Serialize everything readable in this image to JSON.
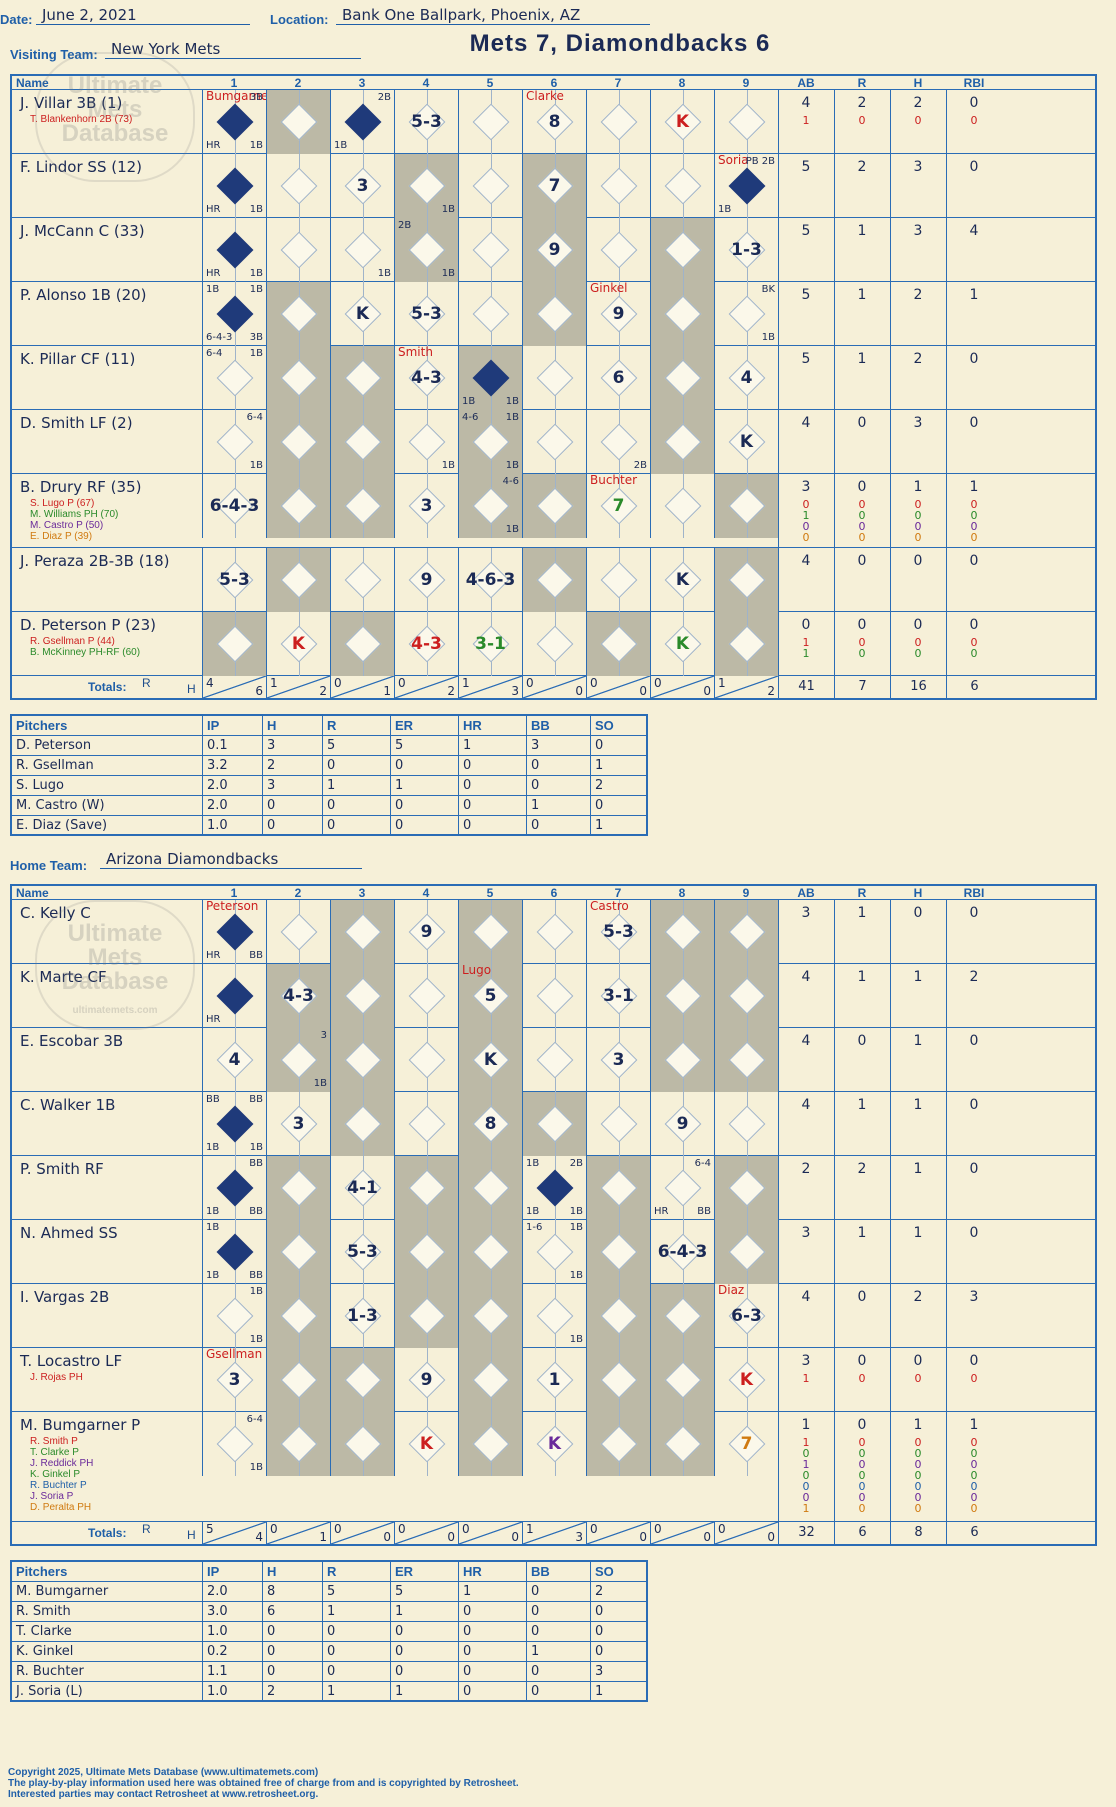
{
  "header": {
    "date_label": "Date:",
    "date": "June 2, 2021",
    "location_label": "Location:",
    "location": "Bank One Ballpark, Phoenix, AZ",
    "visiting_label": "Visiting Team:",
    "visiting": "New York Mets",
    "home_label": "Home Team:",
    "home": "Arizona Diamondbacks",
    "title": "Mets 7, Diamondbacks 6"
  },
  "columns": {
    "name": "Name",
    "innings": [
      "1",
      "2",
      "3",
      "4",
      "5",
      "6",
      "7",
      "8",
      "9"
    ],
    "ab": "AB",
    "r": "R",
    "h": "H",
    "rbi": "RBI"
  },
  "visitors": [
    {
      "name": "J. Villar 3B (1)",
      "subs": [
        {
          "t": "T. Blankenhorn 2B (73)",
          "c": "#cc1f1f"
        }
      ],
      "ab": [
        "4",
        "1"
      ],
      "r": [
        "2",
        "0"
      ],
      "h": [
        "2",
        "0"
      ],
      "rbi": [
        "0",
        "0"
      ],
      "cells": {
        "0": {
          "d": 1,
          "tl": "Bumgarner",
          "tr": "3B",
          "bl": "HR",
          "br": "1B"
        },
        "2": {
          "d": 1,
          "tr": "2B",
          "bl": "1B"
        },
        "3": {
          "p": "5-3"
        },
        "5": {
          "p": "8",
          "tl": "Clarke"
        },
        "7": {
          "p": "K",
          "red": 1
        }
      }
    },
    {
      "name": "F. Lindor SS (12)",
      "subs": [],
      "ab": [
        "5"
      ],
      "r": [
        "2"
      ],
      "h": [
        "3"
      ],
      "rbi": [
        "0"
      ],
      "cells": {
        "0": {
          "d": 1,
          "bl": "HR",
          "br": "1B"
        },
        "2": {
          "p": "3"
        },
        "3": {
          "br": "1B"
        },
        "5": {
          "p": "7"
        },
        "8": {
          "d": 1,
          "tl": "Soria",
          "tr": "PB 2B",
          "bl": "1B"
        }
      }
    },
    {
      "name": "J. McCann C (33)",
      "subs": [],
      "ab": [
        "5"
      ],
      "r": [
        "1"
      ],
      "h": [
        "3"
      ],
      "rbi": [
        "4"
      ],
      "cells": {
        "0": {
          "d": 1,
          "bl": "HR",
          "br": "1B"
        },
        "2": {
          "br": "1B"
        },
        "3": {
          "tl": "2B",
          "br": "1B"
        },
        "5": {
          "p": "9"
        },
        "8": {
          "p": "1-3"
        }
      }
    },
    {
      "name": "P. Alonso 1B (20)",
      "subs": [],
      "ab": [
        "5"
      ],
      "r": [
        "1"
      ],
      "h": [
        "2"
      ],
      "rbi": [
        "1"
      ],
      "cells": {
        "0": {
          "d": 1,
          "tl": "1B",
          "tr": "1B",
          "bl": "6-4-3",
          "br": "3B"
        },
        "2": {
          "p": "K"
        },
        "3": {
          "p": "5-3"
        },
        "6": {
          "p": "9",
          "tl": "Ginkel"
        },
        "8": {
          "tr": "BK",
          "br": "1B"
        }
      }
    },
    {
      "name": "K. Pillar CF (11)",
      "subs": [],
      "ab": [
        "5"
      ],
      "r": [
        "1"
      ],
      "h": [
        "2"
      ],
      "rbi": [
        "0"
      ],
      "cells": {
        "0": {
          "tl": "6-4",
          "tr": "1B"
        },
        "3": {
          "p": "4-3",
          "tl": "Smith"
        },
        "4": {
          "d": 1,
          "bl": "1B",
          "br": "1B"
        },
        "6": {
          "p": "6"
        },
        "8": {
          "p": "4"
        }
      }
    },
    {
      "name": "D. Smith LF (2)",
      "subs": [],
      "ab": [
        "4"
      ],
      "r": [
        "0"
      ],
      "h": [
        "3"
      ],
      "rbi": [
        "0"
      ],
      "cells": {
        "0": {
          "tr": "6-4",
          "br": "1B"
        },
        "3": {
          "br": "1B"
        },
        "4": {
          "tl": "4-6",
          "tr": "1B",
          "br": "1B"
        },
        "6": {
          "br": "2B"
        },
        "8": {
          "p": "K"
        }
      }
    },
    {
      "name": "B. Drury RF (35)",
      "subs": [
        {
          "t": "S. Lugo P (67)",
          "c": "#cc1f1f"
        },
        {
          "t": "M. Williams PH (70)",
          "c": "#2a8a2a"
        },
        {
          "t": "M. Castro P (50)",
          "c": "#6a2a9a"
        },
        {
          "t": "E. Diaz P (39)",
          "c": "#d07a10"
        }
      ],
      "ab": [
        "3",
        "0",
        "1",
        "0",
        "0"
      ],
      "r": [
        "0",
        "0",
        "0",
        "0",
        "0"
      ],
      "h": [
        "1",
        "0",
        "0",
        "0",
        "0"
      ],
      "rbi": [
        "1",
        "0",
        "0",
        "0",
        "0"
      ],
      "cells": {
        "0": {
          "p": "6-4-3"
        },
        "3": {
          "p": "3"
        },
        "4": {
          "tr": "4-6",
          "br": "1B"
        },
        "6": {
          "p": "7",
          "tl": "Buchter",
          "green": 1
        }
      }
    },
    {
      "name": "J. Peraza 2B-3B (18)",
      "subs": [],
      "ab": [
        "4"
      ],
      "r": [
        "0"
      ],
      "h": [
        "0"
      ],
      "rbi": [
        "0"
      ],
      "cells": {
        "0": {
          "p": "5-3"
        },
        "3": {
          "p": "9"
        },
        "4": {
          "p": "4-6-3"
        },
        "7": {
          "p": "K"
        }
      }
    },
    {
      "name": "D. Peterson P (23)",
      "subs": [
        {
          "t": "R. Gsellman P (44)",
          "c": "#cc1f1f"
        },
        {
          "t": "B. McKinney PH-RF (60)",
          "c": "#2a8a2a"
        }
      ],
      "ab": [
        "0",
        "1",
        "1"
      ],
      "r": [
        "0",
        "0",
        "0"
      ],
      "h": [
        "0",
        "0",
        "0"
      ],
      "rbi": [
        "0",
        "0",
        "0"
      ],
      "cells": {
        "1": {
          "p": "K",
          "red": 1
        },
        "3": {
          "p": "4-3",
          "red": 1
        },
        "4": {
          "p": "3-1",
          "green": 1
        },
        "7": {
          "p": "K",
          "green": 1
        }
      }
    }
  ],
  "visitors_totals": {
    "label": "Totals:",
    "r": "R",
    "h": "H",
    "innings": [
      [
        "4",
        "6"
      ],
      [
        "1",
        "2"
      ],
      [
        "0",
        "1"
      ],
      [
        "0",
        "2"
      ],
      [
        "1",
        "3"
      ],
      [
        "0",
        "0"
      ],
      [
        "0",
        "0"
      ],
      [
        "0",
        "0"
      ],
      [
        "1",
        "2"
      ]
    ],
    "ab": "41",
    "runs": "7",
    "hits": "16",
    "rbi": "6"
  },
  "visitor_pitchers": {
    "headers": [
      "Pitchers",
      "IP",
      "H",
      "R",
      "ER",
      "HR",
      "BB",
      "SO"
    ],
    "rows": [
      [
        "D. Peterson",
        "0.1",
        "3",
        "5",
        "5",
        "1",
        "3",
        "0"
      ],
      [
        "R. Gsellman",
        "3.2",
        "2",
        "0",
        "0",
        "0",
        "0",
        "1"
      ],
      [
        "S. Lugo",
        "2.0",
        "3",
        "1",
        "1",
        "0",
        "0",
        "2"
      ],
      [
        "M. Castro (W)",
        "2.0",
        "0",
        "0",
        "0",
        "0",
        "1",
        "0"
      ],
      [
        "E. Diaz (Save)",
        "1.0",
        "0",
        "0",
        "0",
        "0",
        "0",
        "1"
      ]
    ]
  },
  "home_team": [
    {
      "name": "C. Kelly C",
      "subs": [],
      "ab": [
        "3"
      ],
      "r": [
        "1"
      ],
      "h": [
        "0"
      ],
      "rbi": [
        "0"
      ],
      "cells": {
        "0": {
          "d": 1,
          "tl": "Peterson",
          "bl": "HR",
          "br": "BB"
        },
        "3": {
          "p": "9"
        },
        "6": {
          "p": "5-3",
          "tl": "Castro"
        }
      }
    },
    {
      "name": "K. Marte CF",
      "subs": [],
      "ab": [
        "4"
      ],
      "r": [
        "1"
      ],
      "h": [
        "1"
      ],
      "rbi": [
        "2"
      ],
      "cells": {
        "0": {
          "d": 1,
          "bl": "HR"
        },
        "1": {
          "p": "4-3"
        },
        "4": {
          "p": "5",
          "tl": "Lugo"
        },
        "6": {
          "p": "3-1"
        }
      }
    },
    {
      "name": "E. Escobar 3B",
      "subs": [],
      "ab": [
        "4"
      ],
      "r": [
        "0"
      ],
      "h": [
        "1"
      ],
      "rbi": [
        "0"
      ],
      "cells": {
        "0": {
          "p": "4"
        },
        "1": {
          "tr": "3",
          "br": "1B"
        },
        "4": {
          "p": "K"
        },
        "6": {
          "p": "3"
        }
      }
    },
    {
      "name": "C. Walker 1B",
      "subs": [],
      "ab": [
        "4"
      ],
      "r": [
        "1"
      ],
      "h": [
        "1"
      ],
      "rbi": [
        "0"
      ],
      "cells": {
        "0": {
          "d": 1,
          "tl": "BB",
          "tr": "BB",
          "bl": "1B",
          "br": "1B"
        },
        "1": {
          "p": "3"
        },
        "4": {
          "p": "8"
        },
        "7": {
          "p": "9"
        }
      }
    },
    {
      "name": "P. Smith RF",
      "subs": [],
      "ab": [
        "2"
      ],
      "r": [
        "2"
      ],
      "h": [
        "1"
      ],
      "rbi": [
        "0"
      ],
      "cells": {
        "0": {
          "d": 1,
          "tr": "BB",
          "bl": "1B",
          "br": "BB"
        },
        "2": {
          "p": "4-1"
        },
        "5": {
          "d": 1,
          "tl": "1B",
          "tr": "2B",
          "bl": "1B",
          "br": "1B"
        },
        "7": {
          "tr": "6-4",
          "bl": "HR",
          "br": "BB"
        }
      }
    },
    {
      "name": "N. Ahmed SS",
      "subs": [],
      "ab": [
        "3"
      ],
      "r": [
        "1"
      ],
      "h": [
        "1"
      ],
      "rbi": [
        "0"
      ],
      "cells": {
        "0": {
          "d": 1,
          "tl": "1B",
          "bl": "1B",
          "br": "BB"
        },
        "2": {
          "p": "5-3"
        },
        "5": {
          "tl": "1-6",
          "tr": "1B",
          "br": "1B"
        },
        "7": {
          "p": "6-4-3"
        }
      }
    },
    {
      "name": "I. Vargas 2B",
      "subs": [],
      "ab": [
        "4"
      ],
      "r": [
        "0"
      ],
      "h": [
        "2"
      ],
      "rbi": [
        "3"
      ],
      "cells": {
        "0": {
          "tr": "1B",
          "br": "1B"
        },
        "2": {
          "p": "1-3"
        },
        "5": {
          "br": "1B"
        },
        "8": {
          "p": "6-3",
          "tl": "Diaz"
        }
      }
    },
    {
      "name": "T. Locastro LF",
      "subs": [
        {
          "t": "J. Rojas PH",
          "c": "#cc1f1f"
        }
      ],
      "ab": [
        "3",
        "1"
      ],
      "r": [
        "0",
        "0"
      ],
      "h": [
        "0",
        "0"
      ],
      "rbi": [
        "0",
        "0"
      ],
      "cells": {
        "0": {
          "p": "3",
          "tl": "Gsellman"
        },
        "3": {
          "p": "9"
        },
        "5": {
          "p": "1"
        },
        "8": {
          "p": "K",
          "red": 1
        }
      }
    },
    {
      "name": "M. Bumgarner P",
      "subs": [
        {
          "t": "R. Smith P",
          "c": "#cc1f1f"
        },
        {
          "t": "T. Clarke P",
          "c": "#2a8a2a"
        },
        {
          "t": "J. Reddick PH",
          "c": "#6a2a9a"
        },
        {
          "t": "K. Ginkel P",
          "c": "#2a8a2a"
        },
        {
          "t": "R. Buchter P",
          "c": "#1f5fa8"
        },
        {
          "t": "J. Soria P",
          "c": "#6a2a9a"
        },
        {
          "t": "D. Peralta PH",
          "c": "#d07a10"
        }
      ],
      "ab": [
        "1",
        "1",
        "0",
        "1",
        "0",
        "0",
        "0",
        "1"
      ],
      "r": [
        "0",
        "0",
        "0",
        "0",
        "0",
        "0",
        "0",
        "0"
      ],
      "h": [
        "1",
        "0",
        "0",
        "0",
        "0",
        "0",
        "0",
        "0"
      ],
      "rbi": [
        "1",
        "0",
        "0",
        "0",
        "0",
        "0",
        "0",
        "0"
      ],
      "cells": {
        "0": {
          "tr": "6-4",
          "br": "1B"
        },
        "3": {
          "p": "K",
          "red": 1
        },
        "5": {
          "p": "K",
          "purple": 1
        },
        "8": {
          "p": "7",
          "orange": 1
        }
      }
    }
  ],
  "home_totals": {
    "label": "Totals:",
    "r": "R",
    "h": "H",
    "innings": [
      [
        "5",
        "4"
      ],
      [
        "0",
        "1"
      ],
      [
        "0",
        "0"
      ],
      [
        "0",
        "0"
      ],
      [
        "0",
        "0"
      ],
      [
        "1",
        "3"
      ],
      [
        "0",
        "0"
      ],
      [
        "0",
        "0"
      ],
      [
        "0",
        "0"
      ]
    ],
    "ab": "32",
    "runs": "6",
    "hits": "8",
    "rbi": "6"
  },
  "home_pitchers": {
    "headers": [
      "Pitchers",
      "IP",
      "H",
      "R",
      "ER",
      "HR",
      "BB",
      "SO"
    ],
    "rows": [
      [
        "M. Bumgarner",
        "2.0",
        "8",
        "5",
        "5",
        "1",
        "0",
        "2"
      ],
      [
        "R. Smith",
        "3.0",
        "6",
        "1",
        "1",
        "0",
        "0",
        "0"
      ],
      [
        "T. Clarke",
        "1.0",
        "0",
        "0",
        "0",
        "0",
        "0",
        "0"
      ],
      [
        "K. Ginkel",
        "0.2",
        "0",
        "0",
        "0",
        "0",
        "1",
        "0"
      ],
      [
        "R. Buchter",
        "1.1",
        "0",
        "0",
        "0",
        "0",
        "0",
        "3"
      ],
      [
        "J. Soria (L)",
        "1.0",
        "2",
        "1",
        "1",
        "0",
        "0",
        "1"
      ]
    ]
  },
  "logo_text": [
    "Ultimate",
    "Mets",
    "Database",
    "ultimatemets.com"
  ],
  "footer": [
    "Copyright 2025, Ultimate Mets Database (www.ultimatemets.com)",
    "The play-by-play information used here was obtained free of charge from and is copyrighted by Retrosheet.",
    "Interested parties may contact Retrosheet at www.retrosheet.org."
  ]
}
